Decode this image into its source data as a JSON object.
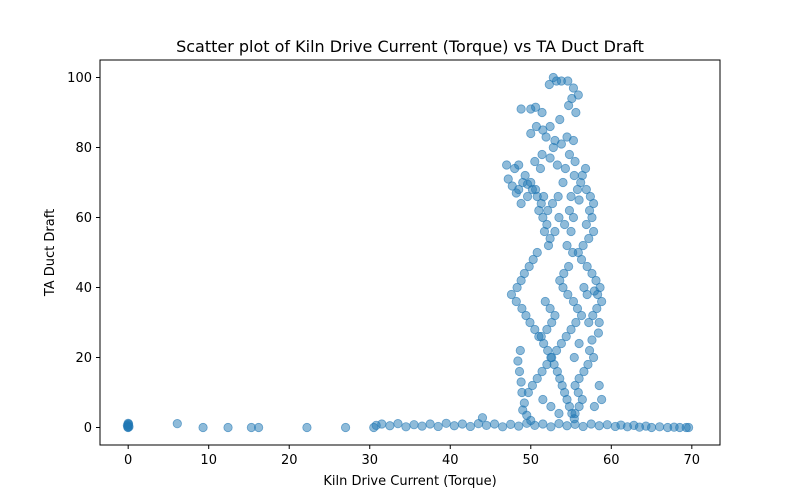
{
  "chart_data": {
    "type": "scatter",
    "title": "Scatter plot of Kiln Drive Current (Torque) vs TA Duct Draft",
    "xlabel": "Kiln Drive Current (Torque)",
    "ylabel": "TA Duct Draft",
    "xlim": [
      -3.5,
      73.5
    ],
    "ylim": [
      -5,
      105
    ],
    "xticks": [
      0,
      10,
      20,
      30,
      40,
      50,
      60,
      70
    ],
    "yticks": [
      0,
      20,
      40,
      60,
      80,
      100
    ],
    "grid": false,
    "marker_color": "#1f77b4",
    "marker_alpha": 0.5,
    "series": [
      {
        "points": [
          [
            0,
            0
          ],
          [
            0,
            0.4
          ],
          [
            0,
            0.8
          ],
          [
            0,
            1.2
          ],
          [
            0.1,
            0.2
          ],
          [
            -0.1,
            0.6
          ],
          [
            0.05,
            1.0
          ],
          [
            -0.05,
            0.1
          ],
          [
            6.1,
            1.1
          ],
          [
            9.3,
            0.0
          ],
          [
            12.4,
            0.0
          ],
          [
            15.3,
            0.0
          ],
          [
            16.2,
            0.0
          ],
          [
            22.2,
            0.0
          ],
          [
            27.0,
            0.0
          ],
          [
            30.5,
            0.0
          ],
          [
            30.8,
            0.6
          ],
          [
            31.5,
            1.0
          ],
          [
            32.5,
            0.5
          ],
          [
            33.5,
            1.1
          ],
          [
            34.5,
            0.2
          ],
          [
            35.5,
            0.8
          ],
          [
            36.5,
            0.4
          ],
          [
            37.5,
            1.0
          ],
          [
            38.5,
            0.3
          ],
          [
            39.5,
            1.2
          ],
          [
            40.5,
            0.5
          ],
          [
            41.5,
            1.0
          ],
          [
            42.5,
            0.3
          ],
          [
            43.5,
            1.1
          ],
          [
            44.0,
            2.8
          ],
          [
            44.5,
            0.6
          ],
          [
            45.5,
            1.0
          ],
          [
            46.5,
            0.2
          ],
          [
            47.5,
            0.9
          ],
          [
            48.5,
            0.4
          ],
          [
            49.5,
            1.2
          ],
          [
            50.5,
            0.6
          ],
          [
            51.5,
            1.0
          ],
          [
            52.5,
            0.2
          ],
          [
            53.5,
            1.1
          ],
          [
            54.5,
            0.5
          ],
          [
            55.5,
            0.9
          ],
          [
            56.5,
            0.3
          ],
          [
            57.5,
            1.0
          ],
          [
            58.5,
            0.5
          ],
          [
            59.5,
            0.8
          ],
          [
            60.5,
            0.3
          ],
          [
            61.2,
            0.7
          ],
          [
            62.0,
            0.2
          ],
          [
            62.8,
            0.6
          ],
          [
            63.5,
            0.1
          ],
          [
            64.3,
            0.4
          ],
          [
            65.0,
            0.0
          ],
          [
            66.0,
            0.2
          ],
          [
            67.0,
            0.0
          ],
          [
            67.8,
            0.1
          ],
          [
            68.5,
            0.0
          ],
          [
            69.3,
            0.0
          ],
          [
            69.6,
            0.0
          ],
          [
            47.0,
            75.0
          ],
          [
            47.2,
            71.0
          ],
          [
            48.0,
            74.0
          ],
          [
            48.5,
            75.0
          ],
          [
            47.7,
            69.0
          ],
          [
            48.2,
            67.0
          ],
          [
            49.0,
            70.0
          ],
          [
            49.6,
            69.5
          ],
          [
            50.2,
            68.0
          ],
          [
            50.8,
            66.0
          ],
          [
            51.3,
            64.0
          ],
          [
            51.0,
            62.0
          ],
          [
            51.5,
            60.0
          ],
          [
            52.0,
            58.0
          ],
          [
            51.7,
            56.0
          ],
          [
            52.4,
            54.0
          ],
          [
            52.2,
            52.0
          ],
          [
            50.8,
            50.0
          ],
          [
            50.3,
            48.0
          ],
          [
            49.8,
            46.0
          ],
          [
            49.2,
            44.0
          ],
          [
            48.8,
            42.0
          ],
          [
            48.3,
            40.0
          ],
          [
            47.6,
            38.0
          ],
          [
            48.2,
            36.0
          ],
          [
            48.9,
            34.0
          ],
          [
            49.4,
            32.0
          ],
          [
            49.9,
            30.0
          ],
          [
            50.5,
            28.0
          ],
          [
            51.0,
            26.0
          ],
          [
            51.6,
            24.0
          ],
          [
            52.1,
            22.0
          ],
          [
            52.5,
            20.0
          ],
          [
            52.9,
            18.0
          ],
          [
            53.3,
            16.0
          ],
          [
            53.6,
            14.0
          ],
          [
            53.9,
            12.0
          ],
          [
            54.2,
            10.0
          ],
          [
            54.5,
            8.0
          ],
          [
            54.8,
            6.0
          ],
          [
            55.1,
            4.0
          ],
          [
            55.4,
            2.5
          ],
          [
            48.7,
            22.0
          ],
          [
            48.4,
            19.0
          ],
          [
            48.6,
            16.0
          ],
          [
            48.8,
            13.0
          ],
          [
            48.9,
            10.0
          ],
          [
            49.2,
            7.0
          ],
          [
            49.0,
            5.0
          ],
          [
            49.5,
            3.5
          ],
          [
            50.0,
            2.0
          ],
          [
            48.8,
            91.0
          ],
          [
            50.0,
            91.0
          ],
          [
            50.6,
            91.5
          ],
          [
            51.4,
            90.0
          ],
          [
            52.3,
            98.0
          ],
          [
            52.8,
            100.0
          ],
          [
            53.2,
            99.0
          ],
          [
            53.8,
            99.0
          ],
          [
            54.6,
            99.0
          ],
          [
            55.3,
            97.0
          ],
          [
            55.9,
            95.0
          ],
          [
            55.1,
            94.0
          ],
          [
            54.7,
            92.0
          ],
          [
            55.6,
            90.0
          ],
          [
            53.6,
            88.0
          ],
          [
            52.4,
            86.0
          ],
          [
            51.5,
            85.0
          ],
          [
            50.7,
            86.0
          ],
          [
            50.0,
            84.0
          ],
          [
            51.9,
            83.0
          ],
          [
            53.0,
            82.0
          ],
          [
            53.8,
            81.0
          ],
          [
            54.5,
            83.0
          ],
          [
            55.3,
            82.0
          ],
          [
            52.8,
            80.0
          ],
          [
            51.4,
            78.0
          ],
          [
            50.5,
            76.0
          ],
          [
            51.2,
            74.0
          ],
          [
            52.4,
            77.0
          ],
          [
            53.3,
            75.0
          ],
          [
            54.3,
            74.0
          ],
          [
            55.4,
            72.0
          ],
          [
            56.2,
            70.0
          ],
          [
            56.9,
            68.0
          ],
          [
            57.4,
            66.0
          ],
          [
            57.8,
            64.0
          ],
          [
            57.3,
            62.0
          ],
          [
            57.6,
            60.0
          ],
          [
            56.9,
            58.0
          ],
          [
            57.8,
            56.0
          ],
          [
            57.2,
            54.0
          ],
          [
            56.5,
            52.0
          ],
          [
            55.9,
            50.0
          ],
          [
            56.3,
            48.0
          ],
          [
            57.0,
            46.0
          ],
          [
            57.6,
            44.0
          ],
          [
            58.1,
            42.0
          ],
          [
            58.6,
            40.0
          ],
          [
            58.3,
            38.0
          ],
          [
            58.8,
            36.0
          ],
          [
            58.2,
            34.0
          ],
          [
            57.7,
            32.0
          ],
          [
            57.2,
            30.0
          ],
          [
            58.4,
            27.0
          ],
          [
            57.6,
            25.0
          ],
          [
            57.3,
            22.0
          ],
          [
            57.8,
            20.0
          ],
          [
            57.1,
            18.0
          ],
          [
            56.6,
            16.0
          ],
          [
            56.0,
            14.0
          ],
          [
            55.5,
            12.0
          ],
          [
            55.9,
            10.0
          ],
          [
            56.4,
            8.0
          ],
          [
            56.0,
            6.0
          ],
          [
            55.5,
            4.0
          ],
          [
            58.5,
            12.0
          ],
          [
            58.8,
            8.0
          ],
          [
            57.9,
            6.0
          ],
          [
            53.0,
            56.0
          ],
          [
            53.5,
            60.0
          ],
          [
            54.2,
            58.0
          ],
          [
            54.8,
            62.0
          ],
          [
            55.3,
            60.0
          ],
          [
            55.0,
            56.0
          ],
          [
            54.5,
            52.0
          ],
          [
            55.2,
            50.0
          ],
          [
            54.7,
            46.0
          ],
          [
            54.1,
            44.0
          ],
          [
            53.6,
            42.0
          ],
          [
            54.0,
            40.0
          ],
          [
            54.6,
            38.0
          ],
          [
            55.3,
            36.0
          ],
          [
            55.8,
            34.0
          ],
          [
            56.3,
            32.0
          ],
          [
            55.6,
            30.0
          ],
          [
            55.0,
            28.0
          ],
          [
            54.4,
            26.0
          ],
          [
            53.8,
            24.0
          ],
          [
            53.2,
            22.0
          ],
          [
            52.6,
            20.0
          ],
          [
            52.0,
            18.0
          ],
          [
            51.4,
            16.0
          ],
          [
            50.8,
            14.0
          ],
          [
            50.2,
            12.0
          ],
          [
            49.7,
            10.0
          ],
          [
            51.5,
            8.0
          ],
          [
            52.5,
            6.0
          ],
          [
            53.5,
            4.0
          ],
          [
            56.0,
            65.0
          ],
          [
            55.8,
            68.0
          ],
          [
            56.4,
            72.0
          ],
          [
            56.8,
            74.0
          ],
          [
            55.5,
            76.0
          ],
          [
            54.8,
            78.0
          ],
          [
            53.4,
            66.0
          ],
          [
            52.7,
            64.0
          ],
          [
            52.1,
            62.0
          ],
          [
            51.6,
            66.0
          ],
          [
            50.6,
            68.0
          ],
          [
            49.6,
            66.0
          ],
          [
            48.8,
            64.0
          ],
          [
            48.5,
            68.0
          ],
          [
            49.3,
            72.0
          ],
          [
            50.0,
            70.0
          ],
          [
            54.0,
            70.0
          ],
          [
            55.0,
            66.0
          ],
          [
            57.0,
            38.0
          ],
          [
            56.6,
            40.0
          ],
          [
            57.9,
            39.0
          ],
          [
            58.5,
            30.0
          ],
          [
            56.0,
            24.0
          ],
          [
            55.4,
            20.0
          ],
          [
            51.8,
            36.0
          ],
          [
            52.4,
            34.0
          ],
          [
            53.0,
            32.0
          ],
          [
            52.6,
            30.0
          ],
          [
            52.0,
            28.0
          ],
          [
            51.3,
            26.0
          ]
        ]
      }
    ]
  }
}
